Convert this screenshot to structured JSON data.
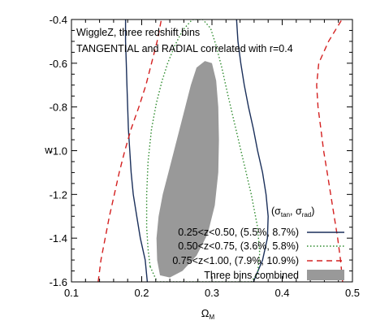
{
  "chart_data": {
    "type": "contour",
    "xlabel_main": "Ω",
    "xlabel_sub": "M",
    "ylabel": "w",
    "xlim": [
      0.1,
      0.5
    ],
    "ylim": [
      -1.6,
      -0.4
    ],
    "xticks": [
      0.1,
      0.2,
      0.3,
      0.4,
      0.5
    ],
    "yticks": [
      -1.6,
      -1.4,
      -1.2,
      -1.0,
      -0.8,
      -0.6,
      -0.4
    ],
    "xtick_labels": [
      "0.1",
      "0.2",
      "0.3",
      "0.4",
      "0.5"
    ],
    "ytick_labels": [
      "-1.6",
      "-1.4",
      "-1.2",
      "-1.0",
      "-0.8",
      "-0.6",
      "-0.4"
    ],
    "annotations": [
      "WiggleZ, three redshift bins",
      "TANGENTIAL and RADIAL correlated with r=0.4"
    ],
    "legend_header": {
      "open": "(σ",
      "sub1": "tan",
      "mid": ", σ",
      "sub2": "rad",
      "close": ")"
    },
    "legend_placement": "bottom-right",
    "series": [
      {
        "name": "0.25<z<0.50, (5.5%,  8.7%)",
        "color": "#1a2f5a",
        "style": "solid",
        "left": [
          [
            0.208,
            -1.6
          ],
          [
            0.205,
            -1.5
          ],
          [
            0.198,
            -1.4
          ],
          [
            0.193,
            -1.3
          ],
          [
            0.188,
            -1.2
          ],
          [
            0.185,
            -1.1
          ],
          [
            0.183,
            -1.0
          ],
          [
            0.181,
            -0.9
          ],
          [
            0.18,
            -0.8
          ],
          [
            0.179,
            -0.7
          ],
          [
            0.178,
            -0.6
          ],
          [
            0.177,
            -0.5
          ],
          [
            0.177,
            -0.4
          ]
        ],
        "right": [
          [
            0.359,
            -1.6
          ],
          [
            0.372,
            -1.5
          ],
          [
            0.379,
            -1.4
          ],
          [
            0.38,
            -1.3
          ],
          [
            0.377,
            -1.2
          ],
          [
            0.372,
            -1.1
          ],
          [
            0.365,
            -1.0
          ],
          [
            0.359,
            -0.9
          ],
          [
            0.352,
            -0.8
          ],
          [
            0.346,
            -0.7
          ],
          [
            0.341,
            -0.6
          ],
          [
            0.337,
            -0.5
          ],
          [
            0.335,
            -0.4
          ]
        ]
      },
      {
        "name": "0.50<z<0.75, (3.6%,  5.8%)",
        "color": "#2e8b2e",
        "style": "dotted",
        "closed": [
          [
            0.212,
            -1.53
          ],
          [
            0.209,
            -1.45
          ],
          [
            0.207,
            -1.35
          ],
          [
            0.207,
            -1.2
          ],
          [
            0.209,
            -1.05
          ],
          [
            0.214,
            -0.9
          ],
          [
            0.221,
            -0.78
          ],
          [
            0.229,
            -0.68
          ],
          [
            0.237,
            -0.6
          ],
          [
            0.247,
            -0.52
          ],
          [
            0.258,
            -0.45
          ],
          [
            0.272,
            -0.4
          ],
          [
            0.287,
            -0.4
          ],
          [
            0.298,
            -0.44
          ],
          [
            0.306,
            -0.52
          ],
          [
            0.314,
            -0.62
          ],
          [
            0.323,
            -0.75
          ],
          [
            0.334,
            -0.9
          ],
          [
            0.345,
            -1.05
          ],
          [
            0.356,
            -1.2
          ],
          [
            0.365,
            -1.35
          ],
          [
            0.368,
            -1.47
          ],
          [
            0.365,
            -1.56
          ],
          [
            0.356,
            -1.6
          ],
          [
            0.222,
            -1.6
          ]
        ]
      },
      {
        "name": "0.75<z<1.00, (7.9%, 10.9%)",
        "color": "#d42020",
        "style": "dashed",
        "left": [
          [
            0.138,
            -1.6
          ],
          [
            0.142,
            -1.5
          ],
          [
            0.148,
            -1.4
          ],
          [
            0.154,
            -1.3
          ],
          [
            0.161,
            -1.2
          ],
          [
            0.168,
            -1.1
          ],
          [
            0.176,
            -1.0
          ],
          [
            0.185,
            -0.9
          ],
          [
            0.196,
            -0.8
          ],
          [
            0.206,
            -0.7
          ],
          [
            0.214,
            -0.6
          ],
          [
            0.222,
            -0.5
          ],
          [
            0.228,
            -0.4
          ]
        ],
        "right": [
          [
            0.486,
            -1.6
          ],
          [
            0.483,
            -1.5
          ],
          [
            0.479,
            -1.4
          ],
          [
            0.474,
            -1.3
          ],
          [
            0.469,
            -1.2
          ],
          [
            0.464,
            -1.1
          ],
          [
            0.459,
            -1.0
          ],
          [
            0.455,
            -0.9
          ],
          [
            0.451,
            -0.8
          ],
          [
            0.449,
            -0.7
          ],
          [
            0.452,
            -0.6
          ],
          [
            0.466,
            -0.5
          ],
          [
            0.485,
            -0.4
          ]
        ]
      },
      {
        "name": "Three bins combined",
        "color": "#999999",
        "style": "filled",
        "closed": [
          [
            0.226,
            -1.57
          ],
          [
            0.222,
            -1.5
          ],
          [
            0.221,
            -1.4
          ],
          [
            0.224,
            -1.3
          ],
          [
            0.23,
            -1.2
          ],
          [
            0.238,
            -1.1
          ],
          [
            0.246,
            -1.0
          ],
          [
            0.254,
            -0.9
          ],
          [
            0.262,
            -0.8
          ],
          [
            0.27,
            -0.7
          ],
          [
            0.278,
            -0.62
          ],
          [
            0.29,
            -0.59
          ],
          [
            0.3,
            -0.6
          ],
          [
            0.306,
            -0.68
          ],
          [
            0.309,
            -0.8
          ],
          [
            0.31,
            -0.95
          ],
          [
            0.309,
            -1.1
          ],
          [
            0.304,
            -1.25
          ],
          [
            0.294,
            -1.38
          ],
          [
            0.278,
            -1.48
          ],
          [
            0.258,
            -1.55
          ],
          [
            0.24,
            -1.58
          ]
        ]
      }
    ]
  }
}
